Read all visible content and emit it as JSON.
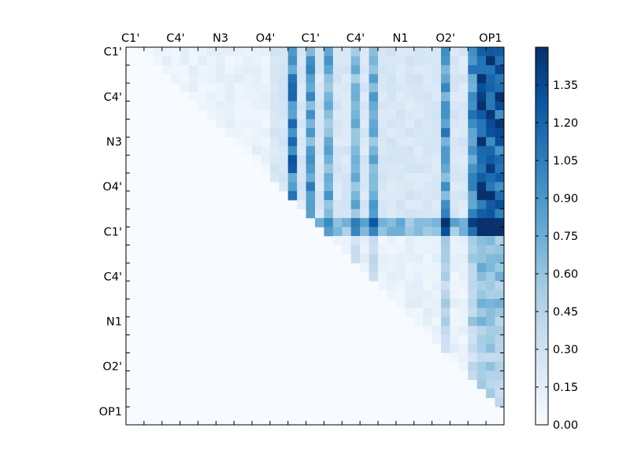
{
  "chart_data": {
    "type": "heatmap",
    "title": "",
    "xlabel": "",
    "ylabel": "",
    "n": 42,
    "tick_positions": [
      0.5,
      5.5,
      10.5,
      15.5,
      20.5,
      25.5,
      30.5,
      35.5,
      40.5
    ],
    "x_tick_labels": [
      "C1'",
      "C4'",
      "N3",
      "O4'",
      "C1'",
      "C4'",
      "N1",
      "O2'",
      "OP1"
    ],
    "y_tick_labels": [
      "C1'",
      "C4'",
      "N3",
      "O4'",
      "C1'",
      "C4'",
      "N1",
      "O2'",
      "OP1"
    ],
    "colorbar": {
      "min": 0.0,
      "max": 1.5,
      "ticks": [
        0.0,
        0.15,
        0.3,
        0.45,
        0.6,
        0.75,
        0.9,
        1.05,
        1.2,
        1.35
      ],
      "tick_labels": [
        "0.00",
        "0.15",
        "0.30",
        "0.45",
        "0.60",
        "0.75",
        "0.90",
        "1.05",
        "1.20",
        "1.35"
      ]
    },
    "colormap": [
      "#f7fbff",
      "#deebf7",
      "#c6dbef",
      "#9ecae1",
      "#6baed6",
      "#4292c6",
      "#2171b5",
      "#08519c",
      "#08306b"
    ],
    "matrix_note": "upper-triangular distance matrix; values are generated by the drawing script",
    "grid": false
  }
}
